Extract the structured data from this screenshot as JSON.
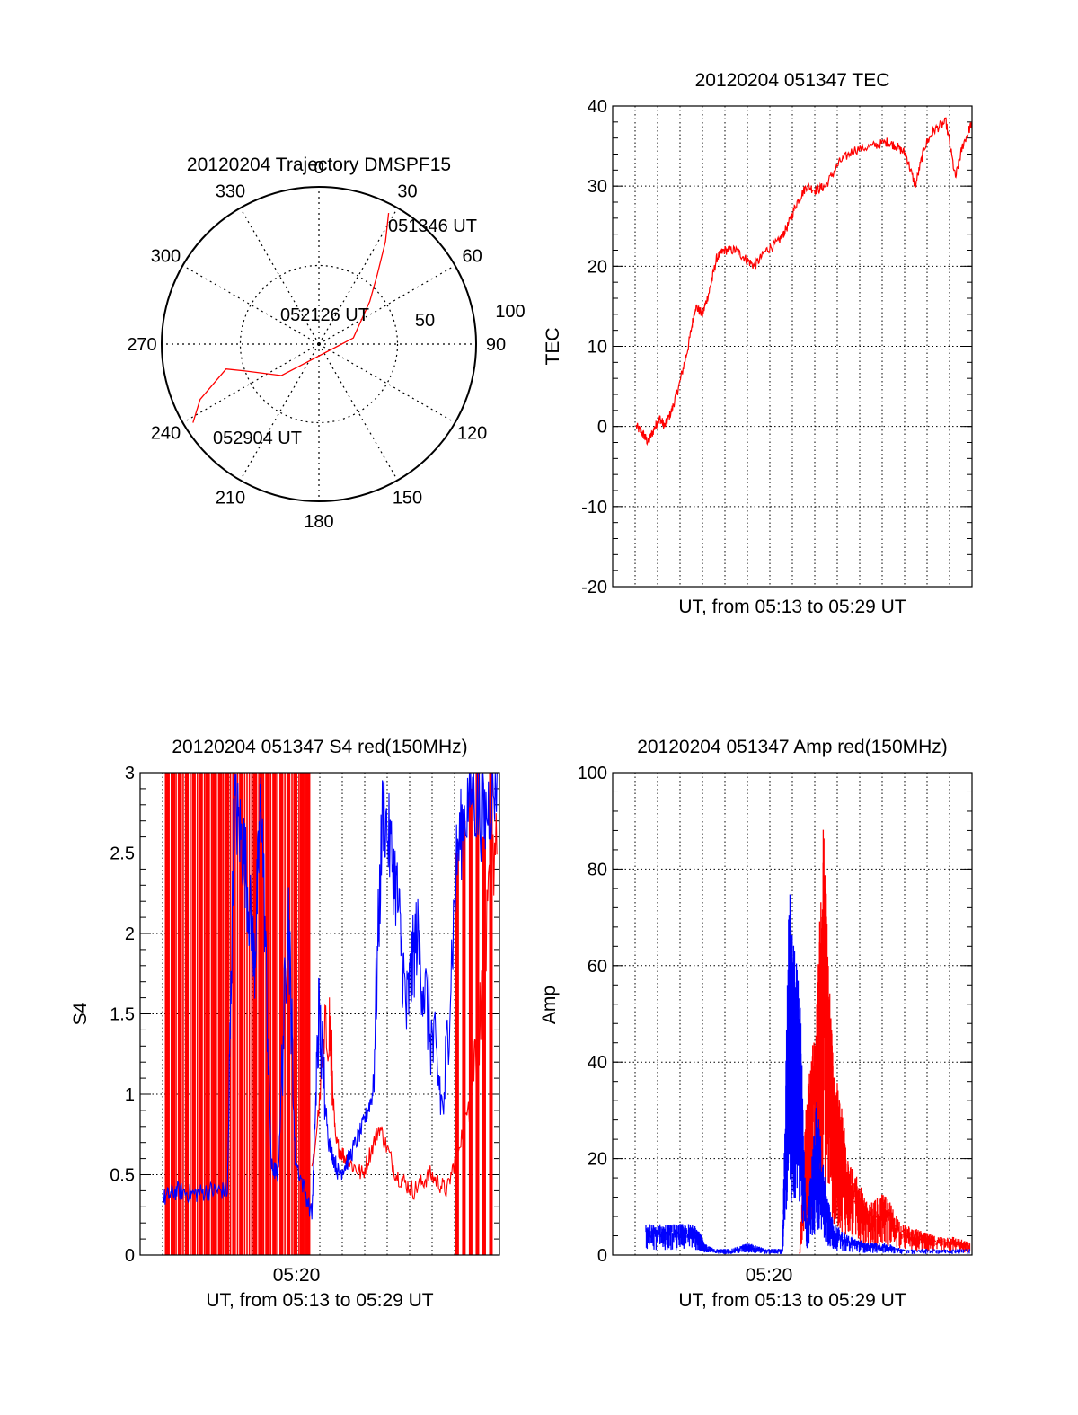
{
  "colors": {
    "red": "#ff0000",
    "blue": "#0000ff",
    "axis": "#000000",
    "grid": "#000000"
  },
  "chart_data": [
    {
      "type": "polar",
      "title": "20120204 Trajectory DMSPF15",
      "angle_labels": [
        "0",
        "30",
        "60",
        "90",
        "120",
        "150",
        "180",
        "210",
        "240",
        "270",
        "300",
        "330"
      ],
      "radial_ticks": [
        50,
        100
      ],
      "radial_labels": [
        "50",
        "100"
      ],
      "annotations": [
        {
          "text": "051346 UT",
          "az": 28,
          "el": 5
        },
        {
          "text": "052126 UT",
          "az": 320,
          "el": 52
        },
        {
          "text": "052904 UT",
          "az": 238,
          "el": 5
        }
      ],
      "trajectory": {
        "color": "red",
        "points": [
          [
            28,
            5
          ],
          [
            33,
            20
          ],
          [
            40,
            38
          ],
          [
            50,
            52
          ],
          [
            80,
            70
          ],
          [
            230,
            62
          ],
          [
            250,
            45
          ],
          [
            255,
            35
          ],
          [
            245,
            15
          ],
          [
            238,
            5
          ]
        ]
      }
    },
    {
      "type": "line",
      "title": "20120204 051347 TEC",
      "ylabel": "TEC",
      "xlabel": "UT, from 05:13 to 05:29 UT",
      "ylim": [
        -20,
        40
      ],
      "yticks": [
        "-20",
        "-10",
        "0",
        "10",
        "20",
        "30",
        "40"
      ],
      "xlim_min": [
        13.8,
        29.0
      ],
      "grid": true,
      "series": [
        {
          "color": "red",
          "x": [
            14.8,
            15.1,
            15.3,
            15.6,
            15.8,
            16.0,
            16.3,
            16.6,
            17.0,
            17.3,
            17.6,
            17.9,
            18.2,
            18.5,
            19.0,
            19.4,
            19.8,
            20.3,
            20.8,
            21.2,
            21.6,
            22.0,
            22.4,
            22.8,
            23.4,
            24.0,
            24.8,
            25.4,
            25.8,
            26.2,
            26.6,
            27.0,
            27.4,
            27.9,
            28.3,
            28.6,
            29.0
          ],
          "y": [
            0,
            -1,
            -2,
            0,
            1,
            0,
            2,
            5,
            10,
            15,
            14,
            17,
            21,
            22,
            22,
            21,
            20,
            22,
            23,
            25,
            28,
            30,
            29.5,
            30,
            33,
            34.5,
            35,
            35.5,
            35,
            34,
            30,
            35,
            37,
            38,
            31,
            35,
            38
          ]
        }
      ]
    },
    {
      "type": "line",
      "title": "20120204 051347 S4 red(150MHz)",
      "ylabel": "S4",
      "xlabel": "UT, from 05:13 to 05:29 UT",
      "xtick_label": "05:20",
      "ylim": [
        0,
        3
      ],
      "yticks": [
        "0",
        "0.5",
        "1",
        "1.5",
        "2",
        "2.5",
        "3"
      ],
      "grid": true,
      "series": [
        {
          "color": "blue",
          "x": [
            0.01,
            0.05,
            0.1,
            0.15,
            0.2,
            0.22,
            0.25,
            0.28,
            0.3,
            0.33,
            0.35,
            0.38,
            0.4,
            0.45,
            0.47,
            0.5,
            0.53,
            0.56,
            0.6,
            0.63,
            0.66,
            0.7,
            0.73,
            0.76,
            0.8,
            0.84,
            0.88,
            0.92,
            0.96,
            1.0
          ],
          "y": [
            0.35,
            0.4,
            0.38,
            0.4,
            0.4,
            2.8,
            2.5,
            1.8,
            2.9,
            0.55,
            0.5,
            2.2,
            0.6,
            0.25,
            1.5,
            0.7,
            0.5,
            0.6,
            0.8,
            1.0,
            2.8,
            2.3,
            1.5,
            2.0,
            1.4,
            0.9,
            2.5,
            2.9,
            2.7,
            3.0
          ]
        },
        {
          "color": "red",
          "x": [
            0.45,
            0.5,
            0.52,
            0.55,
            0.6,
            0.65,
            0.7,
            0.75,
            0.8,
            0.85,
            0.9,
            0.95,
            1.0
          ],
          "y": [
            0.5,
            1.5,
            0.7,
            0.6,
            0.5,
            0.8,
            0.5,
            0.4,
            0.5,
            0.4,
            0.8,
            1.5,
            2.8
          ]
        },
        {
          "color": "red-spikes",
          "x": [
            0.02,
            0.04,
            0.06,
            0.08,
            0.1,
            0.12,
            0.14,
            0.16,
            0.18,
            0.2,
            0.24,
            0.28,
            0.3,
            0.32,
            0.34,
            0.36,
            0.38,
            0.4,
            0.42,
            0.44,
            0.88,
            0.9,
            0.92,
            0.94,
            0.96,
            0.98
          ],
          "y": [
            3,
            3,
            3,
            3,
            3,
            3,
            3,
            3,
            3,
            3,
            3,
            3,
            3,
            3,
            3,
            3,
            3,
            3,
            3,
            3,
            2.5,
            2.7,
            2.9,
            3,
            2.6,
            3
          ]
        }
      ]
    },
    {
      "type": "line",
      "title": "20120204 051347 Amp red(150MHz)",
      "ylabel": "Amp",
      "xlabel": "UT, from 05:13 to 05:29 UT",
      "xtick_label": "05:20",
      "ylim": [
        0,
        100
      ],
      "yticks": [
        "0",
        "20",
        "40",
        "60",
        "80",
        "100"
      ],
      "grid": true,
      "series": [
        {
          "color": "blue",
          "x": [
            0.05,
            0.1,
            0.15,
            0.2,
            0.22,
            0.25,
            0.3,
            0.35,
            0.4,
            0.45,
            0.47,
            0.48,
            0.5,
            0.52,
            0.55,
            0.58,
            0.6,
            0.65,
            0.7,
            0.75,
            0.8,
            0.9,
            1.0
          ],
          "y": [
            5,
            5,
            5,
            5,
            2,
            1,
            1,
            2,
            1,
            1,
            60,
            50,
            45,
            5,
            25,
            10,
            5,
            3,
            2,
            2,
            1,
            1,
            1
          ]
        },
        {
          "color": "red",
          "x": [
            0.5,
            0.52,
            0.55,
            0.57,
            0.6,
            0.62,
            0.65,
            0.7,
            0.75,
            0.8,
            0.85,
            0.9,
            0.95,
            1.0
          ],
          "y": [
            0,
            25,
            40,
            70,
            30,
            25,
            15,
            8,
            10,
            5,
            4,
            3,
            3,
            2
          ]
        }
      ]
    }
  ]
}
